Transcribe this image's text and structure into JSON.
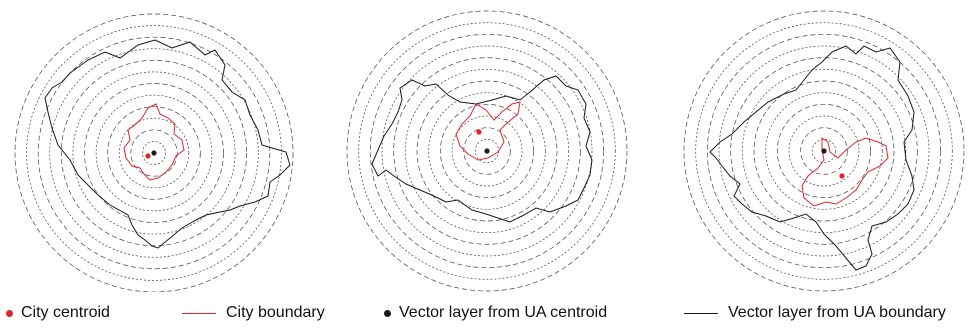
{
  "colors": {
    "city": "#e0262b",
    "vector": "#1a1a1a",
    "rings": "#444444"
  },
  "legend": [
    {
      "label": "City centroid",
      "symbol": "dot",
      "color": "#e0262b"
    },
    {
      "label": "City boundary",
      "symbol": "line",
      "color": "#e0262b"
    },
    {
      "label": "Vector layer from UA centroid",
      "symbol": "dot",
      "color": "#1a1a1a"
    },
    {
      "label": "Vector layer from UA boundary",
      "symbol": "line",
      "color": "#1a1a1a"
    }
  ],
  "panels": [
    {
      "id": "panel-1",
      "ring_count": 12
    },
    {
      "id": "panel-2",
      "ring_count": 12
    },
    {
      "id": "panel-3",
      "ring_count": 12
    }
  ]
}
